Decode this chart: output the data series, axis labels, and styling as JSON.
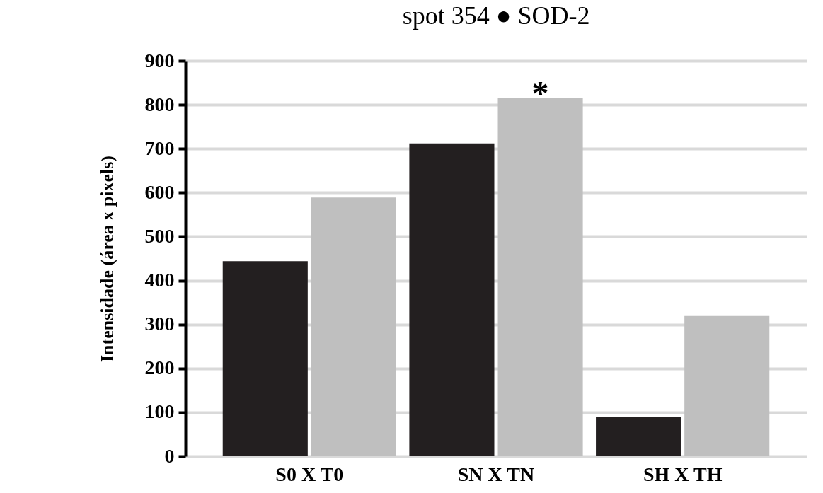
{
  "chart_data": {
    "type": "bar",
    "title": "spot 354 ● SOD-2",
    "ylabel": "Intensidade (área x pixels)",
    "categories": [
      "S0 X T0",
      "SN X TN",
      "SH X TH"
    ],
    "series": [
      {
        "color": "#231f20",
        "values": [
          444,
          712,
          89
        ]
      },
      {
        "color": "#bfbfbf",
        "values": [
          589,
          816,
          319
        ]
      }
    ],
    "ylim": [
      0,
      900
    ],
    "yticks": [
      0,
      100,
      200,
      300,
      400,
      500,
      600,
      700,
      800,
      900
    ],
    "grid": "y",
    "legend": false,
    "annotations": [
      {
        "text": "*",
        "x": "SN X TN",
        "y": 816
      }
    ]
  }
}
